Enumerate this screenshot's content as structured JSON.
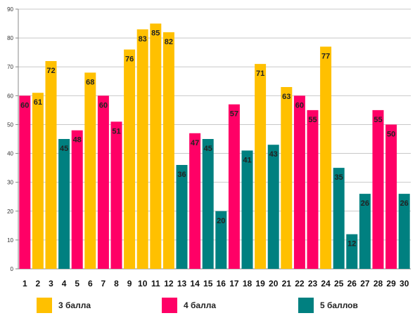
{
  "chart_data": {
    "type": "bar",
    "categories": [
      "1",
      "2",
      "3",
      "4",
      "5",
      "6",
      "7",
      "8",
      "9",
      "10",
      "11",
      "12",
      "13",
      "14",
      "15",
      "16",
      "17",
      "18",
      "19",
      "20",
      "21",
      "22",
      "23",
      "24",
      "25",
      "26",
      "27",
      "28",
      "29",
      "30"
    ],
    "values": [
      60,
      61,
      72,
      45,
      48,
      68,
      60,
      51,
      76,
      83,
      85,
      82,
      36,
      47,
      45,
      20,
      57,
      41,
      71,
      43,
      63,
      60,
      55,
      77,
      35,
      12,
      26,
      55,
      50,
      26
    ],
    "groups": [
      2,
      1,
      1,
      3,
      2,
      1,
      2,
      2,
      1,
      1,
      1,
      1,
      3,
      2,
      3,
      3,
      2,
      3,
      1,
      3,
      1,
      2,
      2,
      1,
      3,
      3,
      3,
      2,
      2,
      3
    ],
    "group_names": {
      "1": "3 балла",
      "2": "4 балла",
      "3": "5 баллов"
    },
    "group_colors": {
      "1": "#FFC000",
      "2": "#FF0066",
      "3": "#008080"
    },
    "ylim": [
      0,
      90
    ],
    "yticks": [
      0,
      10,
      20,
      30,
      40,
      50,
      60,
      70,
      80,
      90
    ],
    "grid": true,
    "legend_position": "bottom",
    "title": "",
    "xlabel": "",
    "ylabel": ""
  },
  "legend": [
    {
      "label": "3 балла",
      "color": "#FFC000"
    },
    {
      "label": "4 балла",
      "color": "#FF0066"
    },
    {
      "label": "5 баллов",
      "color": "#008080"
    }
  ]
}
